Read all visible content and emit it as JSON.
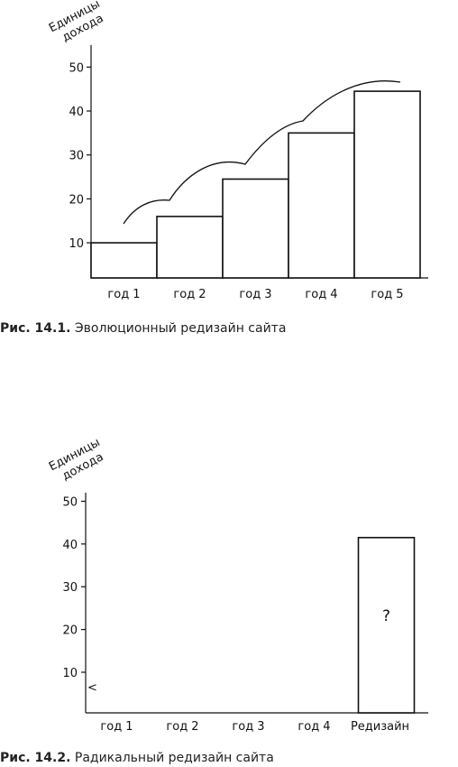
{
  "chart_data": [
    {
      "type": "bar",
      "ylabel": "Единицы дохода",
      "categories": [
        "год 1",
        "год 2",
        "год 3",
        "год 4",
        "год 5"
      ],
      "values": [
        10,
        16,
        24.5,
        35,
        44.5
      ],
      "yticks": [
        10,
        20,
        30,
        40,
        50
      ],
      "ylim": [
        2,
        55
      ],
      "annotation": "evolutionary growth arcs above bars",
      "caption_label": "Рис. 14.1.",
      "caption_text": "Эволюционный редизайн сайта"
    },
    {
      "type": "bar",
      "ylabel": "Единицы дохода",
      "categories": [
        "год 1",
        "год 2",
        "год 3",
        "год 4",
        "Редизайн"
      ],
      "values": [
        null,
        null,
        null,
        null,
        41.5
      ],
      "bar_label": "?",
      "axis_marker": "<",
      "yticks": [
        10,
        20,
        30,
        40,
        50
      ],
      "ylim": [
        0.5,
        52
      ],
      "caption_label": "Рис. 14.2.",
      "caption_text": "Радикальный редизайн сайта"
    }
  ]
}
